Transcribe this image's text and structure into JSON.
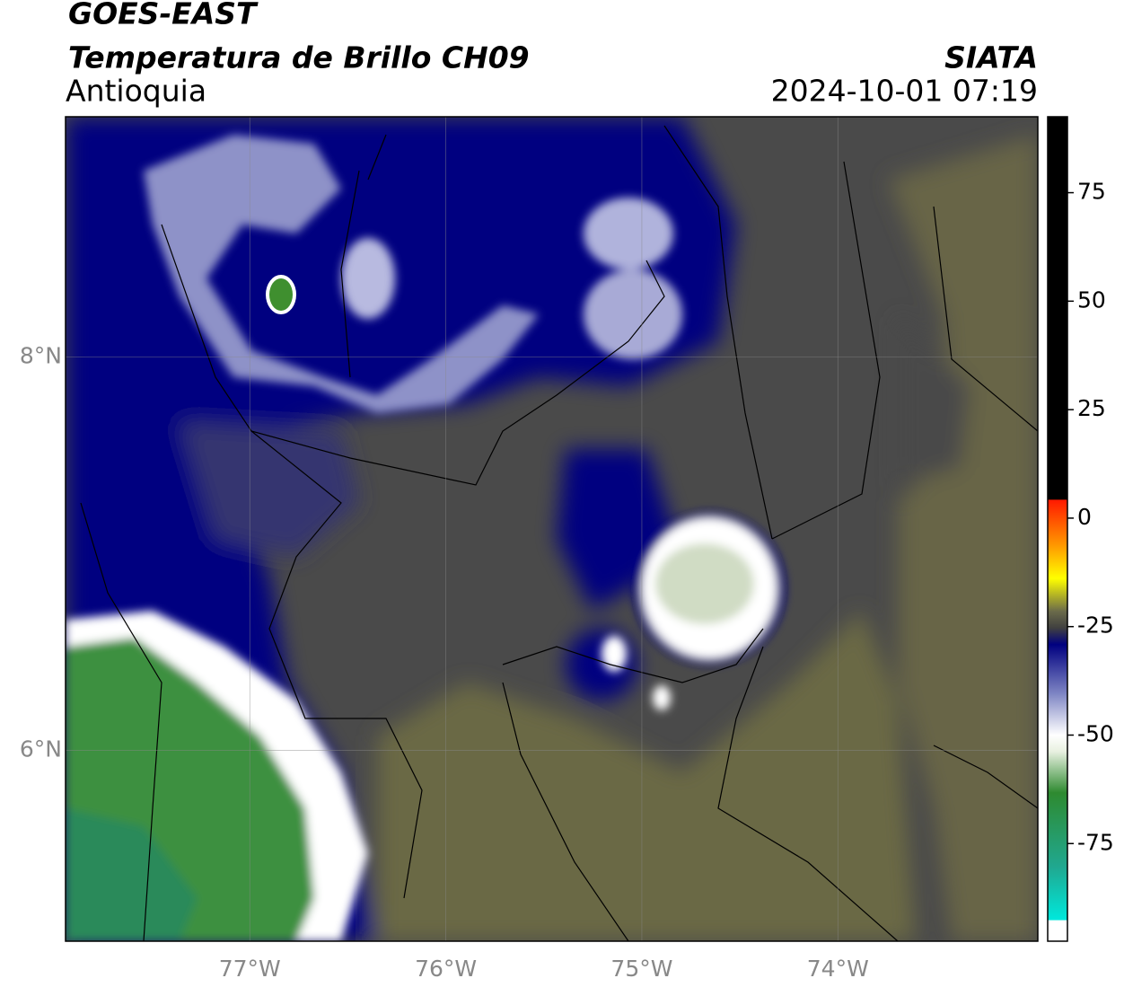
{
  "header": {
    "satellite": "GOES-EAST",
    "product": "Temperatura de Brillo CH09",
    "region": "Antioquia",
    "source": "SIATA",
    "datetime": "2024-10-01 07:19"
  },
  "map": {
    "lonlim": [
      -77.94,
      -72.98
    ],
    "latlim": [
      5.03,
      9.22
    ],
    "lonticks": [
      {
        "value": -77,
        "label": "77°W"
      },
      {
        "value": -76,
        "label": "76°W"
      },
      {
        "value": -75,
        "label": "75°W"
      },
      {
        "value": -74,
        "label": "74°W"
      }
    ],
    "latticks": [
      {
        "value": 8,
        "label": "8°N"
      },
      {
        "value": 6,
        "label": "6°N"
      }
    ],
    "grid": true
  },
  "colorbar": {
    "lim": [
      -97.5,
      92.5
    ],
    "ticks": [
      75,
      50,
      25,
      0,
      -25,
      -50,
      -75
    ]
  }
}
